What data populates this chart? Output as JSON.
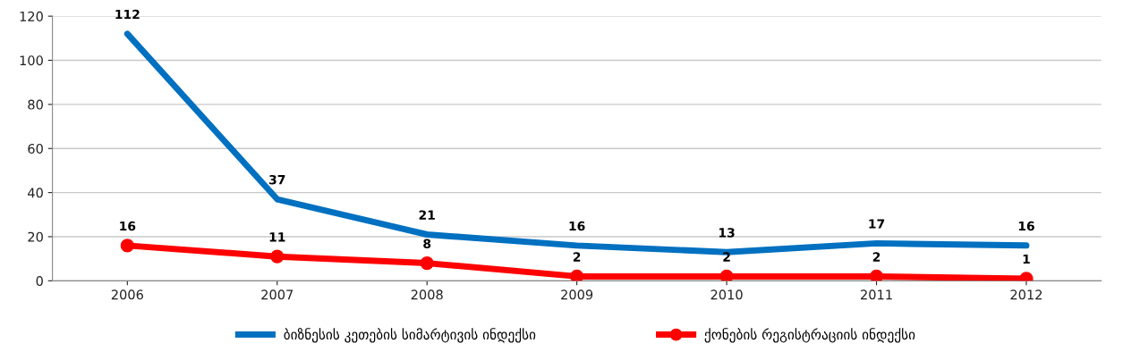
{
  "chart_data": {
    "type": "line",
    "categories": [
      "2006",
      "2007",
      "2008",
      "2009",
      "2010",
      "2011",
      "2012"
    ],
    "series": [
      {
        "name": "ბიზნესის კეთების სიმარტივის ინდექსი",
        "color": "#0070c0",
        "values": [
          112,
          37,
          21,
          16,
          13,
          17,
          16
        ],
        "marker": "none"
      },
      {
        "name": "ქონების რეგისტრაციის ინდექსი",
        "color": "#ff0000",
        "values": [
          16,
          11,
          8,
          2,
          2,
          2,
          1
        ],
        "marker": "circle"
      }
    ],
    "ylim": [
      0,
      120
    ],
    "yticks": [
      0,
      20,
      40,
      60,
      80,
      100,
      120
    ],
    "grid": "y",
    "legend": "bottom",
    "data_labels": true
  }
}
